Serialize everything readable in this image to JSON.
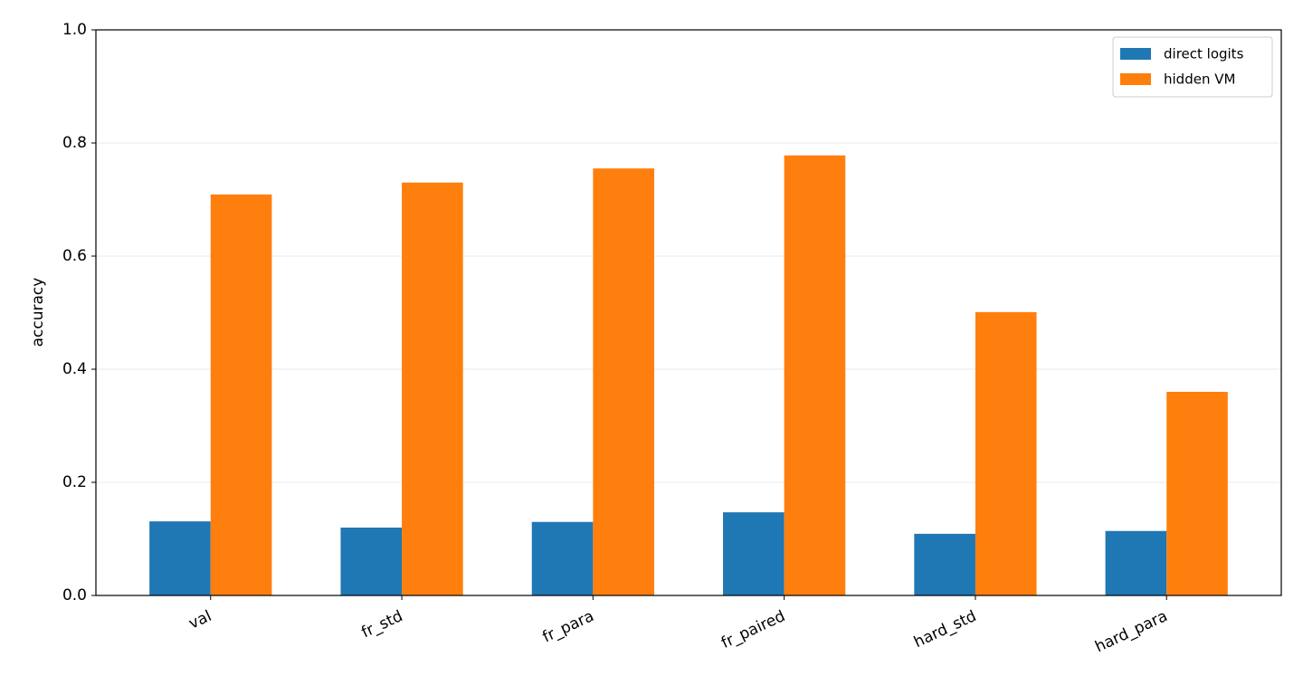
{
  "chart_data": {
    "type": "bar",
    "y_label": "accuracy",
    "categories": [
      "val",
      "fr_std",
      "fr_para",
      "fr_paired",
      "hard_std",
      "hard_para"
    ],
    "series": [
      {
        "name": "direct logits",
        "color": "#1f77b4",
        "values": [
          0.131,
          0.12,
          0.13,
          0.147,
          0.109,
          0.114
        ]
      },
      {
        "name": "hidden VM",
        "color": "#ff7f0e",
        "values": [
          0.709,
          0.73,
          0.755,
          0.778,
          0.501,
          0.36
        ]
      }
    ],
    "ylim": [
      0,
      1
    ],
    "yticks": [
      {
        "value": 0,
        "label": "0.0"
      },
      0.2,
      0.4,
      0.6,
      0.8,
      {
        "value": 1,
        "label": "1.0"
      }
    ],
    "grid": true,
    "legend": "upper right"
  }
}
